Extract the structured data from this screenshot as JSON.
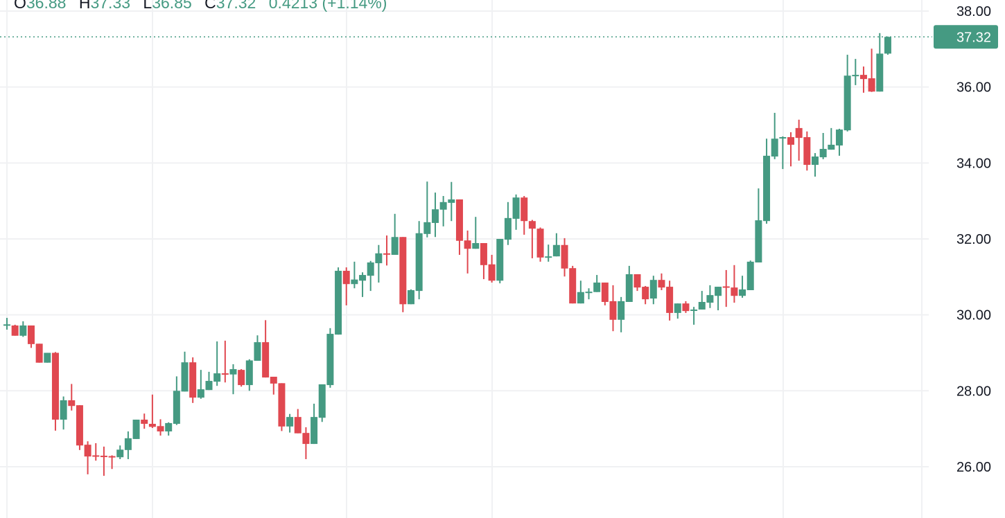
{
  "legend": {
    "open_label": "O",
    "open": "36.88",
    "high_label": "H",
    "high": "37.33",
    "low_label": "L",
    "low": "36.85",
    "close_label": "C",
    "close": "37.32",
    "change": "0.4213 (+1.14%)"
  },
  "colors": {
    "up": "#459A82",
    "down": "#E04850",
    "grid": "#F0F1F3",
    "axis_text": "#131722"
  },
  "chart_data": {
    "type": "candlestick",
    "ylim": [
      25.3,
      38.3
    ],
    "y_ticks": [
      "26.00",
      "28.00",
      "30.00",
      "32.00",
      "34.00",
      "36.00",
      "38.00"
    ],
    "last_price": 37.32,
    "last_price_label": "37.32",
    "grid": true,
    "ohlc": [
      [
        29.75,
        29.92,
        29.61,
        29.75
      ],
      [
        29.72,
        29.74,
        29.45,
        29.45
      ],
      [
        29.45,
        29.83,
        29.42,
        29.72
      ],
      [
        29.72,
        29.72,
        29.13,
        29.23
      ],
      [
        29.24,
        29.24,
        28.74,
        28.74
      ],
      [
        28.74,
        29.0,
        28.74,
        29.0
      ],
      [
        29.0,
        29.02,
        26.95,
        27.24
      ],
      [
        27.24,
        27.85,
        26.98,
        27.75
      ],
      [
        27.75,
        28.18,
        27.48,
        27.6
      ],
      [
        27.62,
        27.62,
        26.44,
        26.56
      ],
      [
        26.58,
        26.67,
        25.8,
        26.27
      ],
      [
        26.3,
        26.62,
        26.16,
        26.28
      ],
      [
        26.29,
        26.53,
        25.76,
        26.28
      ],
      [
        26.28,
        26.3,
        25.94,
        26.26
      ],
      [
        26.25,
        26.56,
        26.2,
        26.45
      ],
      [
        26.44,
        26.93,
        26.2,
        26.75
      ],
      [
        26.73,
        27.24,
        26.73,
        27.24
      ],
      [
        27.24,
        27.4,
        27.0,
        27.13
      ],
      [
        27.13,
        27.9,
        27.02,
        27.05
      ],
      [
        27.07,
        27.25,
        26.82,
        26.93
      ],
      [
        26.93,
        27.17,
        26.82,
        27.15
      ],
      [
        27.13,
        28.38,
        27.1,
        28.0
      ],
      [
        27.98,
        29.03,
        27.98,
        28.75
      ],
      [
        28.75,
        28.88,
        27.68,
        27.82
      ],
      [
        27.82,
        28.55,
        27.79,
        28.04
      ],
      [
        28.02,
        28.5,
        28.02,
        28.26
      ],
      [
        28.24,
        29.3,
        28.13,
        28.46
      ],
      [
        28.46,
        29.32,
        28.22,
        28.45
      ],
      [
        28.43,
        28.7,
        27.91,
        28.57
      ],
      [
        28.55,
        28.57,
        28.11,
        28.15
      ],
      [
        28.15,
        28.83,
        28.0,
        28.8
      ],
      [
        28.79,
        29.46,
        28.79,
        29.28
      ],
      [
        29.28,
        29.86,
        28.35,
        28.35
      ],
      [
        28.37,
        28.37,
        27.9,
        28.19
      ],
      [
        28.2,
        28.2,
        26.94,
        27.06
      ],
      [
        27.06,
        27.39,
        26.9,
        27.31
      ],
      [
        27.31,
        27.52,
        26.88,
        26.88
      ],
      [
        26.89,
        27.04,
        26.2,
        26.6
      ],
      [
        26.6,
        27.66,
        26.6,
        27.31
      ],
      [
        27.29,
        28.17,
        27.18,
        28.17
      ],
      [
        28.15,
        29.65,
        28.08,
        29.5
      ],
      [
        29.48,
        31.25,
        29.48,
        31.16
      ],
      [
        31.16,
        31.25,
        30.25,
        30.81
      ],
      [
        30.81,
        31.4,
        30.7,
        30.93
      ],
      [
        30.9,
        31.12,
        30.47,
        31.05
      ],
      [
        31.03,
        31.42,
        30.63,
        31.38
      ],
      [
        31.36,
        31.84,
        30.85,
        31.62
      ],
      [
        31.62,
        32.09,
        31.3,
        31.61
      ],
      [
        31.58,
        32.66,
        31.58,
        32.05
      ],
      [
        32.05,
        32.05,
        30.07,
        30.28
      ],
      [
        30.28,
        30.67,
        30.28,
        30.65
      ],
      [
        30.63,
        32.47,
        30.41,
        32.15
      ],
      [
        32.13,
        33.51,
        32.04,
        32.44
      ],
      [
        32.42,
        33.22,
        32.05,
        32.78
      ],
      [
        32.77,
        33.13,
        32.33,
        32.97
      ],
      [
        32.95,
        33.5,
        32.47,
        33.04
      ],
      [
        33.04,
        33.04,
        31.58,
        31.95
      ],
      [
        31.96,
        32.22,
        31.09,
        31.74
      ],
      [
        31.74,
        32.58,
        31.74,
        31.89
      ],
      [
        31.89,
        31.89,
        30.94,
        31.31
      ],
      [
        31.33,
        31.58,
        30.85,
        30.9
      ],
      [
        30.9,
        32.0,
        30.83,
        32.0
      ],
      [
        31.98,
        32.97,
        31.84,
        32.55
      ],
      [
        32.53,
        33.17,
        32.24,
        33.09
      ],
      [
        33.09,
        33.13,
        32.11,
        32.47
      ],
      [
        32.47,
        32.5,
        31.49,
        32.27
      ],
      [
        32.27,
        32.3,
        31.4,
        31.51
      ],
      [
        31.53,
        31.85,
        31.4,
        31.54
      ],
      [
        31.54,
        32.15,
        31.54,
        31.84
      ],
      [
        31.84,
        32.02,
        31.01,
        31.22
      ],
      [
        31.23,
        31.29,
        30.3,
        30.3
      ],
      [
        30.3,
        30.9,
        30.3,
        30.6
      ],
      [
        30.6,
        30.7,
        30.41,
        30.61
      ],
      [
        30.6,
        31.05,
        30.6,
        30.85
      ],
      [
        30.85,
        30.85,
        30.25,
        30.34
      ],
      [
        30.36,
        30.78,
        29.57,
        29.87
      ],
      [
        29.87,
        30.47,
        29.54,
        30.36
      ],
      [
        30.34,
        31.29,
        30.34,
        31.07
      ],
      [
        31.07,
        31.07,
        30.63,
        30.72
      ],
      [
        30.74,
        30.76,
        30.28,
        30.41
      ],
      [
        30.43,
        31.03,
        30.28,
        30.92
      ],
      [
        30.92,
        31.09,
        30.65,
        30.72
      ],
      [
        30.74,
        30.9,
        29.85,
        30.05
      ],
      [
        30.05,
        30.3,
        29.9,
        30.3
      ],
      [
        30.3,
        30.36,
        30.05,
        30.1
      ],
      [
        30.13,
        30.21,
        29.74,
        30.14
      ],
      [
        30.14,
        30.63,
        30.14,
        30.34
      ],
      [
        30.32,
        30.78,
        30.18,
        30.52
      ],
      [
        30.5,
        30.74,
        30.12,
        30.74
      ],
      [
        30.75,
        31.18,
        30.21,
        30.74
      ],
      [
        30.72,
        31.31,
        30.32,
        30.5
      ],
      [
        30.5,
        31.03,
        30.45,
        30.67
      ],
      [
        30.65,
        31.43,
        30.65,
        31.4
      ],
      [
        31.38,
        33.33,
        31.38,
        32.49
      ],
      [
        32.47,
        34.64,
        32.4,
        34.19
      ],
      [
        34.17,
        35.32,
        34.1,
        34.64
      ],
      [
        34.67,
        34.7,
        33.84,
        34.68
      ],
      [
        34.68,
        34.81,
        33.91,
        34.48
      ],
      [
        34.92,
        35.14,
        34.06,
        34.66
      ],
      [
        34.68,
        34.83,
        33.8,
        33.95
      ],
      [
        33.95,
        34.26,
        33.64,
        34.17
      ],
      [
        34.15,
        34.79,
        34.1,
        34.37
      ],
      [
        34.35,
        34.92,
        34.35,
        34.48
      ],
      [
        34.46,
        34.9,
        34.19,
        34.88
      ],
      [
        34.86,
        36.85,
        34.83,
        36.3
      ],
      [
        36.31,
        36.74,
        36.05,
        36.32
      ],
      [
        36.32,
        36.54,
        35.85,
        36.21
      ],
      [
        36.23,
        37.01,
        35.87,
        35.88
      ],
      [
        35.88,
        37.42,
        35.88,
        36.88
      ],
      [
        36.88,
        37.33,
        36.85,
        37.32
      ]
    ]
  }
}
